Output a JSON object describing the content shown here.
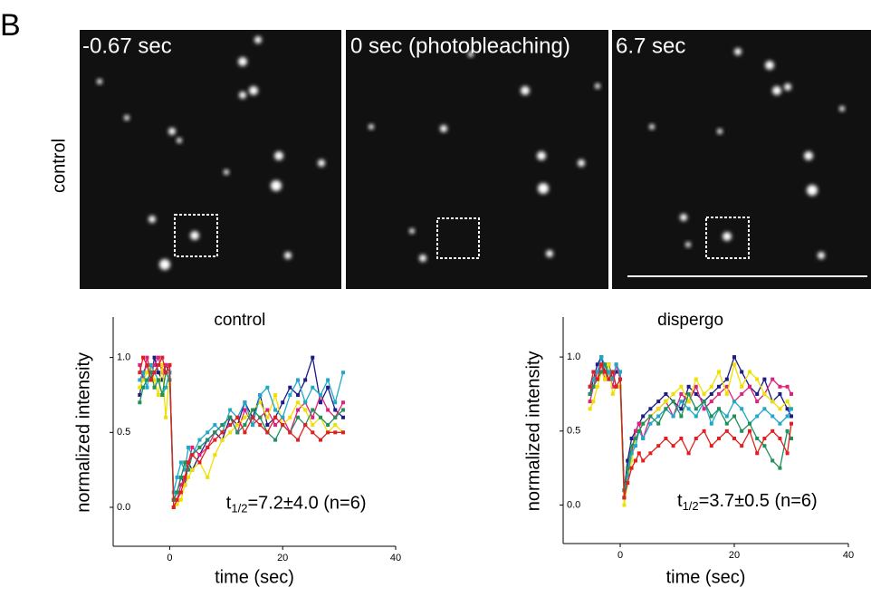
{
  "panel_label": "B",
  "row_label": "control",
  "images": [
    {
      "label": "-0.67 sec"
    },
    {
      "label": "0 sec (photobleaching)"
    },
    {
      "label": "6.7 sec"
    }
  ],
  "chart_data": [
    {
      "type": "line",
      "title": "control",
      "x_label": "time (sec)",
      "y_label": "normalized intensity",
      "annotation": {
        "symbol": "t",
        "subscript": "1/2",
        "text": "=7.2±4.0 (n=6)"
      },
      "xlim": [
        -10,
        40
      ],
      "xticks": [
        0,
        20,
        40
      ],
      "ylim": [
        -0.26,
        1.27
      ],
      "yticks": [
        {
          "value": 0,
          "label": "0.0"
        },
        0.5,
        {
          "value": 1,
          "label": "1.0"
        }
      ],
      "x": [
        -5.3,
        -4.7,
        -4,
        -3.3,
        -2.7,
        -2,
        -1.3,
        -0.7,
        0,
        0.7,
        1.3,
        2,
        2.7,
        3.3,
        4,
        5.3,
        6.7,
        8,
        9.3,
        10.7,
        12,
        13.3,
        14.7,
        16,
        17.3,
        18.7,
        20,
        21.3,
        22.7,
        24,
        25.3,
        26.7,
        28,
        29.3,
        30.7
      ],
      "series": [
        {
          "color": "#1c1c84",
          "values": [
            0.75,
            0.9,
            0.95,
            0.85,
            1.0,
            0.9,
            0.85,
            0.95,
            0.9,
            0.05,
            0.1,
            0.2,
            0.15,
            0.3,
            0.25,
            0.35,
            0.45,
            0.5,
            0.45,
            0.6,
            0.55,
            0.7,
            0.6,
            0.75,
            0.55,
            0.6,
            0.7,
            0.8,
            0.75,
            0.85,
            1.0,
            0.7,
            0.8,
            0.65,
            0.6
          ]
        },
        {
          "color": "#e0207a",
          "values": [
            0.95,
            0.85,
            1.0,
            0.9,
            0.95,
            1.0,
            0.9,
            0.95,
            0.95,
            0.0,
            0.05,
            0.15,
            0.2,
            0.3,
            0.4,
            0.35,
            0.4,
            0.5,
            0.55,
            0.6,
            0.5,
            0.65,
            0.55,
            0.6,
            0.65,
            0.55,
            0.6,
            0.5,
            0.65,
            0.7,
            0.6,
            0.75,
            0.65,
            0.6,
            0.7
          ]
        },
        {
          "color": "#f0e000",
          "values": [
            0.8,
            0.85,
            0.9,
            0.95,
            0.85,
            0.75,
            0.95,
            0.6,
            0.9,
            0.0,
            0.02,
            0.05,
            0.15,
            0.2,
            0.25,
            0.3,
            0.2,
            0.35,
            0.45,
            0.5,
            0.55,
            0.6,
            0.65,
            0.7,
            0.6,
            0.75,
            0.55,
            0.6,
            0.7,
            0.65,
            0.55,
            0.6,
            0.5,
            0.55,
            0.5
          ]
        },
        {
          "color": "#20a8c8",
          "values": [
            0.85,
            0.9,
            0.8,
            0.95,
            0.9,
            0.85,
            0.75,
            0.8,
            0.9,
            0.1,
            0.2,
            0.3,
            0.25,
            0.4,
            0.35,
            0.45,
            0.5,
            0.55,
            0.5,
            0.65,
            0.6,
            0.7,
            0.55,
            0.75,
            0.8,
            0.65,
            0.6,
            0.75,
            0.85,
            0.7,
            0.8,
            0.75,
            0.85,
            0.7,
            0.9
          ]
        },
        {
          "color": "#20905c",
          "values": [
            0.7,
            0.8,
            0.85,
            0.9,
            0.8,
            0.85,
            0.75,
            0.9,
            0.85,
            0.05,
            0.1,
            0.2,
            0.3,
            0.25,
            0.35,
            0.4,
            0.45,
            0.5,
            0.55,
            0.6,
            0.5,
            0.55,
            0.65,
            0.6,
            0.5,
            0.45,
            0.55,
            0.5,
            0.6,
            0.55,
            0.65,
            0.6,
            0.55,
            0.6,
            0.65
          ]
        },
        {
          "color": "#e02020",
          "values": [
            0.9,
            1.0,
            0.95,
            0.85,
            0.9,
            0.95,
            1.0,
            0.9,
            0.95,
            0.0,
            0.05,
            0.1,
            0.2,
            0.3,
            0.35,
            0.3,
            0.4,
            0.45,
            0.5,
            0.55,
            0.6,
            0.5,
            0.6,
            0.55,
            0.5,
            0.6,
            0.55,
            0.5,
            0.45,
            0.55,
            0.5,
            0.45,
            0.5,
            0.5,
            0.5
          ]
        }
      ]
    },
    {
      "type": "line",
      "title": "dispergo",
      "x_label": "time (sec)",
      "y_label": "normalized intensity",
      "annotation": {
        "symbol": "t",
        "subscript": "1/2",
        "text": "=3.7±0.5 (n=6)"
      },
      "xlim": [
        -10,
        40
      ],
      "xticks": [
        0,
        20,
        40
      ],
      "ylim": [
        -0.26,
        1.27
      ],
      "yticks": [
        {
          "value": 0,
          "label": "0.0"
        },
        0.5,
        {
          "value": 1,
          "label": "1.0"
        }
      ],
      "x": [
        -5.3,
        -4.7,
        -4,
        -3.3,
        -2.7,
        -2,
        -1.3,
        -0.7,
        0,
        0.7,
        1.3,
        2,
        2.7,
        3.3,
        4,
        5.3,
        6.7,
        8,
        9.3,
        10.7,
        12,
        13.3,
        14.7,
        16,
        17.3,
        18.7,
        20,
        21.3,
        22.7,
        24,
        25.3,
        26.7,
        28,
        29.3,
        30
      ],
      "series": [
        {
          "color": "#1c1c84",
          "values": [
            0.75,
            0.85,
            0.95,
            1.0,
            0.9,
            0.95,
            0.85,
            0.9,
            0.9,
            0.1,
            0.3,
            0.45,
            0.5,
            0.55,
            0.6,
            0.65,
            0.7,
            0.75,
            0.7,
            0.65,
            0.8,
            0.75,
            0.7,
            0.75,
            0.8,
            0.85,
            1.0,
            0.9,
            0.8,
            0.75,
            0.85,
            0.7,
            0.75,
            0.65,
            0.6
          ]
        },
        {
          "color": "#e0207a",
          "values": [
            0.7,
            0.8,
            0.9,
            0.95,
            0.85,
            0.9,
            0.8,
            0.95,
            0.85,
            0.05,
            0.2,
            0.35,
            0.5,
            0.55,
            0.45,
            0.6,
            0.65,
            0.7,
            0.6,
            0.75,
            0.7,
            0.8,
            0.65,
            0.7,
            0.75,
            0.8,
            0.7,
            0.75,
            0.8,
            0.7,
            0.75,
            0.85,
            0.8,
            0.8,
            0.75
          ]
        },
        {
          "color": "#f0e000",
          "values": [
            0.65,
            0.7,
            0.8,
            0.9,
            0.85,
            0.95,
            0.75,
            0.8,
            0.8,
            0.0,
            0.15,
            0.3,
            0.45,
            0.5,
            0.55,
            0.6,
            0.65,
            0.7,
            0.75,
            0.8,
            0.7,
            0.85,
            0.75,
            0.8,
            0.9,
            0.75,
            0.95,
            0.8,
            0.9,
            0.85,
            0.75,
            0.7,
            0.65,
            0.7,
            0.65
          ]
        },
        {
          "color": "#20a8c8",
          "values": [
            0.8,
            0.85,
            0.9,
            1.0,
            0.95,
            0.9,
            0.85,
            0.95,
            0.9,
            0.05,
            0.2,
            0.35,
            0.4,
            0.5,
            0.45,
            0.55,
            0.6,
            0.65,
            0.6,
            0.7,
            0.65,
            0.6,
            0.7,
            0.55,
            0.65,
            0.6,
            0.7,
            0.65,
            0.55,
            0.6,
            0.65,
            0.6,
            0.55,
            0.6,
            0.65
          ]
        },
        {
          "color": "#20905c",
          "values": [
            0.75,
            0.8,
            0.85,
            0.9,
            0.95,
            0.85,
            0.9,
            0.8,
            0.85,
            0.1,
            0.25,
            0.4,
            0.45,
            0.5,
            0.55,
            0.6,
            0.55,
            0.65,
            0.7,
            0.6,
            0.75,
            0.65,
            0.7,
            0.6,
            0.65,
            0.55,
            0.6,
            0.5,
            0.55,
            0.45,
            0.4,
            0.3,
            0.25,
            0.5,
            0.45
          ]
        },
        {
          "color": "#e02020",
          "values": [
            0.8,
            0.9,
            0.85,
            0.95,
            0.9,
            0.85,
            0.9,
            0.8,
            0.85,
            0.05,
            0.15,
            0.25,
            0.3,
            0.35,
            0.3,
            0.35,
            0.4,
            0.45,
            0.4,
            0.45,
            0.35,
            0.45,
            0.5,
            0.4,
            0.45,
            0.5,
            0.45,
            0.4,
            0.5,
            0.35,
            0.45,
            0.5,
            0.45,
            0.35,
            0.55
          ]
        }
      ]
    }
  ]
}
